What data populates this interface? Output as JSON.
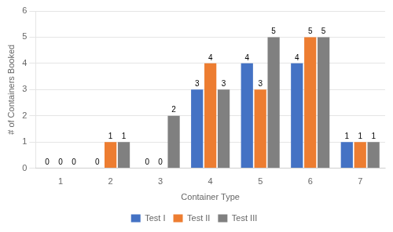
{
  "chart_data": {
    "type": "bar",
    "categories": [
      "1",
      "2",
      "3",
      "4",
      "5",
      "6",
      "7"
    ],
    "series": [
      {
        "name": "Test I",
        "color": "#4472C4",
        "values": [
          0,
          0,
          0,
          3,
          4,
          4,
          1
        ]
      },
      {
        "name": "Test II",
        "color": "#ED7D31",
        "values": [
          0,
          1,
          0,
          4,
          3,
          5,
          1
        ]
      },
      {
        "name": "Test III",
        "color": "#808080",
        "values": [
          0,
          1,
          2,
          3,
          5,
          5,
          1
        ]
      }
    ],
    "xlabel": "Container Type",
    "ylabel": "# of Containers Booked",
    "ylim": [
      0,
      6
    ],
    "yticks": [
      0,
      1,
      2,
      3,
      4,
      5,
      6
    ],
    "grid": true,
    "data_labels": true,
    "legend": "bottom"
  }
}
